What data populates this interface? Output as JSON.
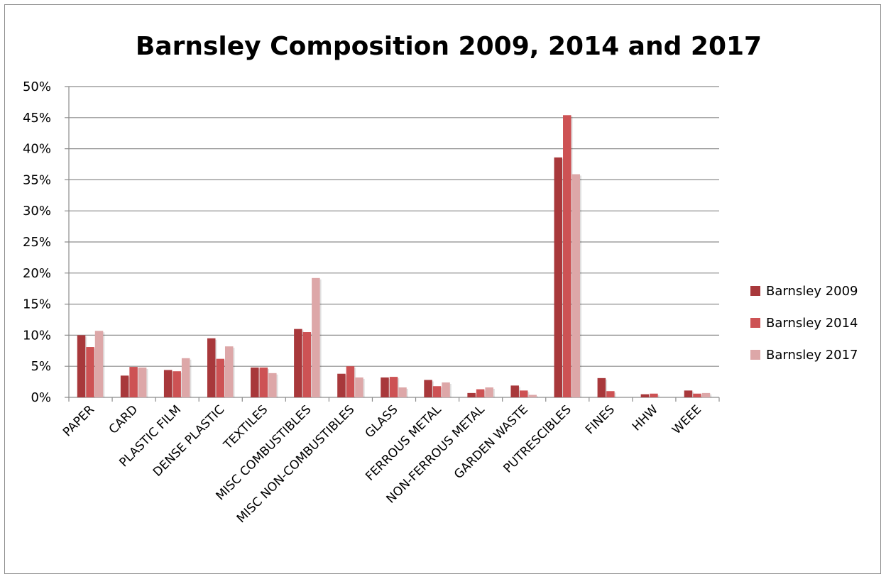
{
  "chart_data": {
    "type": "bar",
    "title": "Barnsley Composition 2009, 2014 and 2017",
    "xlabel": "",
    "ylabel": "",
    "ylim": [
      0,
      50
    ],
    "y_ticks": [
      "0%",
      "5%",
      "10%",
      "15%",
      "20%",
      "25%",
      "30%",
      "35%",
      "40%",
      "45%",
      "50%"
    ],
    "grid": true,
    "legend_position": "right",
    "categories": [
      "PAPER",
      "CARD",
      "PLASTIC FILM",
      "DENSE PLASTIC",
      "TEXTILES",
      "MISC COMBUSTIBLES",
      "MISC NON-COMBUSTIBLES",
      "GLASS",
      "FERROUS METAL",
      "NON-FERROUS METAL",
      "GARDEN WASTE",
      "PUTRESCIBLES",
      "FINES",
      "HHW",
      "WEEE"
    ],
    "series": [
      {
        "name": "Barnsley 2009",
        "color": "#a8383b",
        "values": [
          10.0,
          3.5,
          4.4,
          9.5,
          4.8,
          11.0,
          3.8,
          3.2,
          2.8,
          0.7,
          1.9,
          38.6,
          3.1,
          0.5,
          1.1
        ]
      },
      {
        "name": "Barnsley 2014",
        "color": "#cd5254",
        "values": [
          8.1,
          4.9,
          4.2,
          6.2,
          4.8,
          10.5,
          5.0,
          3.3,
          1.8,
          1.3,
          1.1,
          45.4,
          1.0,
          0.6,
          0.6
        ]
      },
      {
        "name": "Barnsley 2017",
        "color": "#dda7a8",
        "values": [
          10.7,
          4.8,
          6.3,
          8.2,
          3.9,
          19.2,
          3.2,
          1.6,
          2.4,
          1.6,
          0.4,
          35.9,
          0.0,
          0.0,
          0.7
        ]
      }
    ]
  }
}
